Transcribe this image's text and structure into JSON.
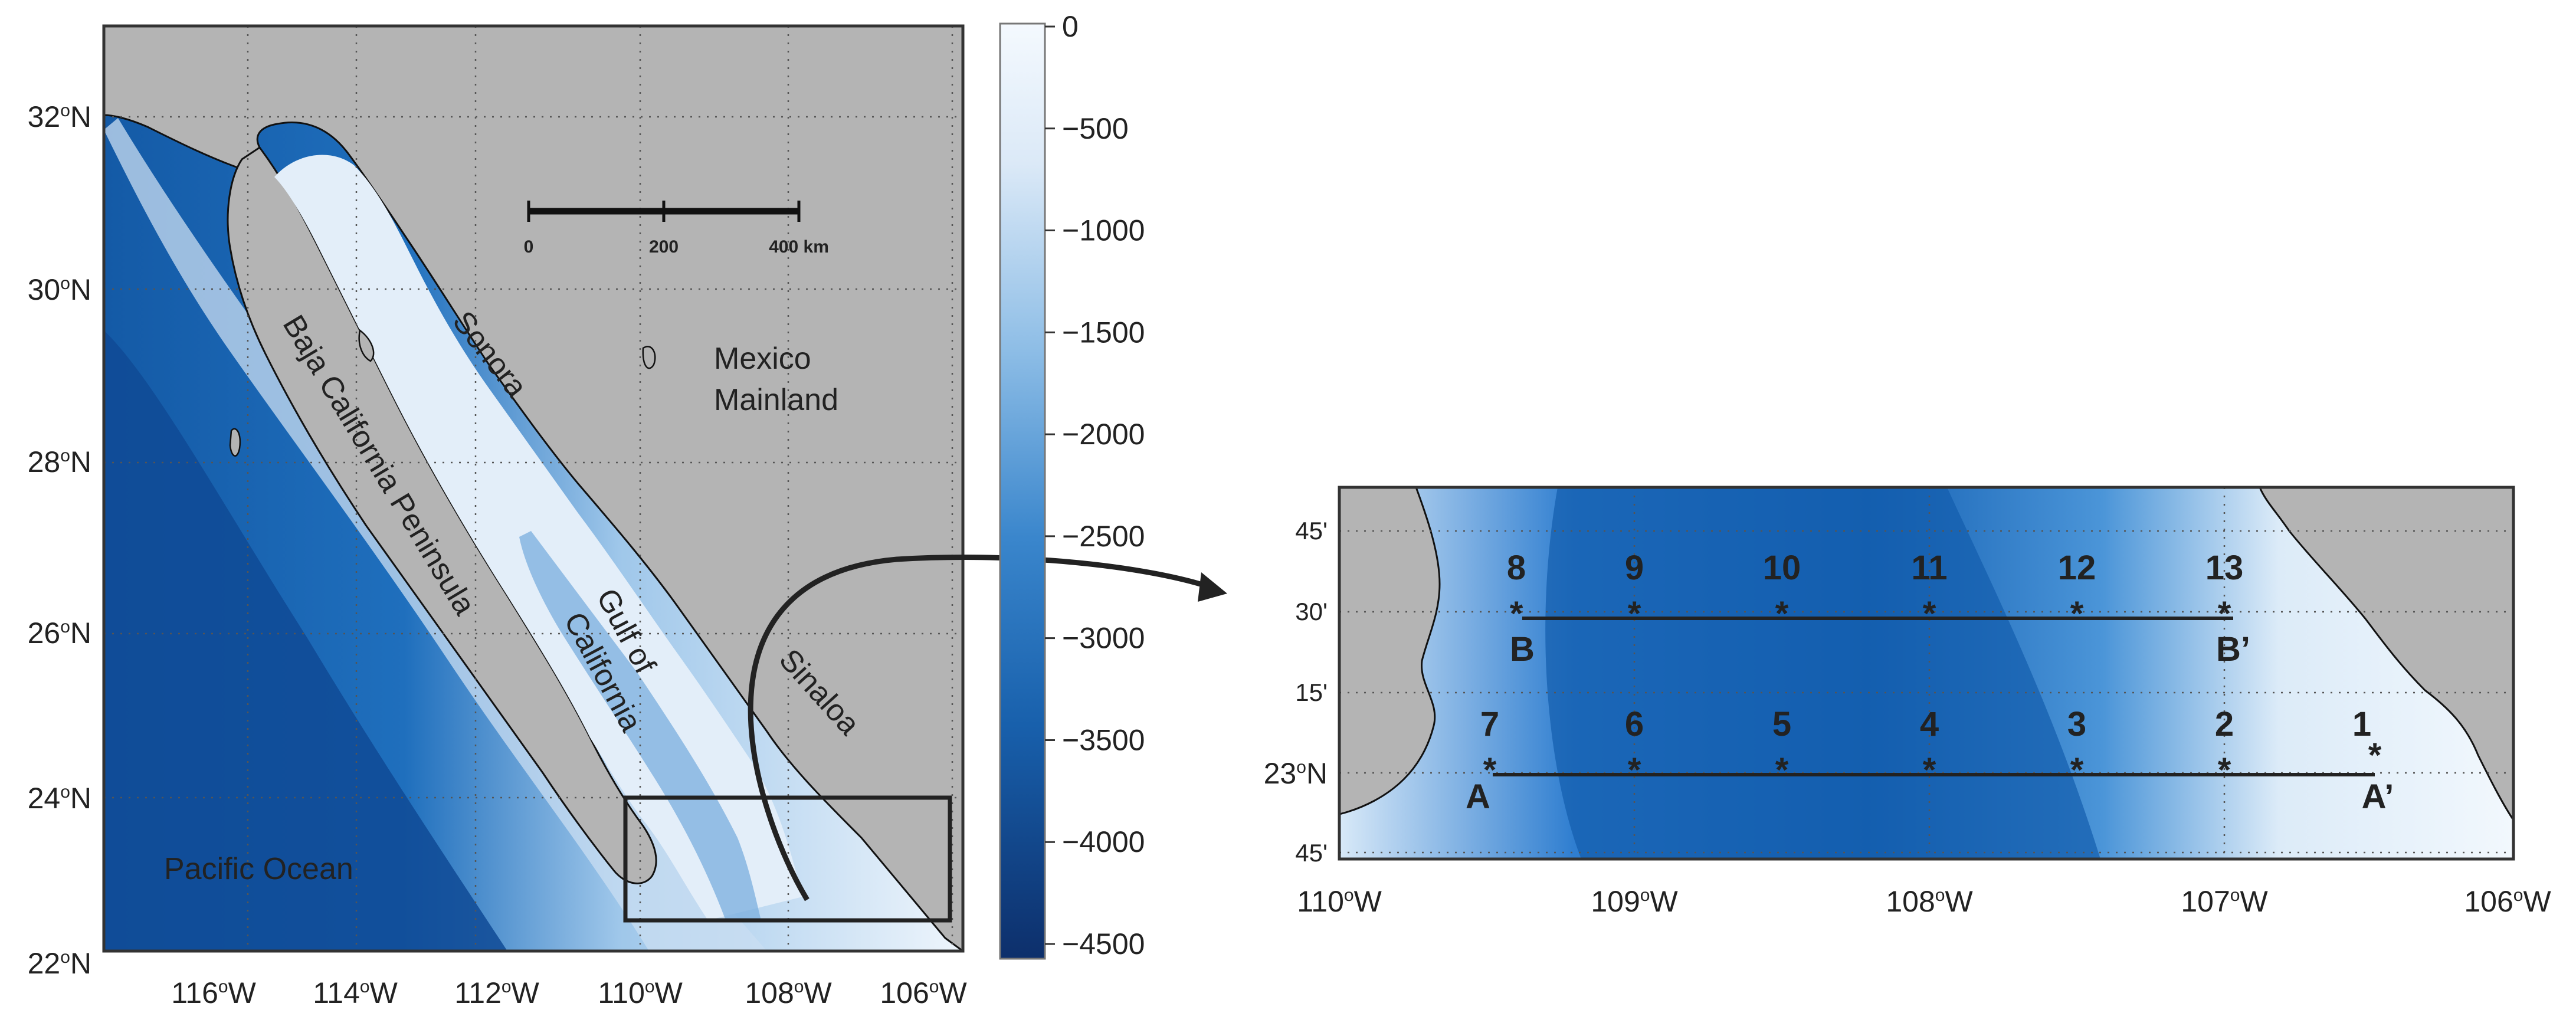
{
  "colors": {
    "land": "#b4b4b4",
    "ocean_shallow": "#f3f8fd",
    "ocean_deep": "#0c3f85",
    "frame": "#333333"
  },
  "left_map": {
    "lat_labels": [
      {
        "deg": "32",
        "sup": "o",
        "hemi": "N"
      },
      {
        "deg": "30",
        "sup": "o",
        "hemi": "N"
      },
      {
        "deg": "28",
        "sup": "o",
        "hemi": "N"
      },
      {
        "deg": "26",
        "sup": "o",
        "hemi": "N"
      },
      {
        "deg": "24",
        "sup": "o",
        "hemi": "N"
      },
      {
        "deg": "22",
        "sup": "o",
        "hemi": "N"
      }
    ],
    "lon_labels": [
      {
        "deg": "116",
        "sup": "o",
        "hemi": "W"
      },
      {
        "deg": "114",
        "sup": "o",
        "hemi": "W"
      },
      {
        "deg": "112",
        "sup": "o",
        "hemi": "W"
      },
      {
        "deg": "110",
        "sup": "o",
        "hemi": "W"
      },
      {
        "deg": "108",
        "sup": "o",
        "hemi": "W"
      },
      {
        "deg": "106",
        "sup": "o",
        "hemi": "W"
      }
    ],
    "places": {
      "sonora": "Sonora",
      "mexico": "Mexico",
      "mainland": "Mainland",
      "baja": "Baja California Peninsula",
      "gulf": "Gulf of",
      "california": "California",
      "sinaloa": "Sinaloa",
      "pacific": "Pacific Ocean"
    },
    "scale_bar": {
      "t0": "0",
      "t1": "200",
      "t2": "400 km"
    }
  },
  "colorbar": {
    "ticks": [
      "0",
      "−500",
      "−1000",
      "−1500",
      "−2000",
      "−2500",
      "−3000",
      "−3500",
      "−4000",
      "−4500"
    ]
  },
  "inset": {
    "lat_labels": [
      "45'",
      "30'",
      "15'",
      "23°N",
      "45'"
    ],
    "lat_23": {
      "deg": "23",
      "sup": "o",
      "hemi": "N"
    },
    "lon_labels": [
      {
        "deg": "110",
        "sup": "o",
        "hemi": "W"
      },
      {
        "deg": "109",
        "sup": "o",
        "hemi": "W"
      },
      {
        "deg": "108",
        "sup": "o",
        "hemi": "W"
      },
      {
        "deg": "107",
        "sup": "o",
        "hemi": "W"
      },
      {
        "deg": "106",
        "sup": "o",
        "hemi": "W"
      }
    ],
    "stations_top": [
      "8",
      "9",
      "10",
      "11",
      "12",
      "13"
    ],
    "stations_bottom": [
      "7",
      "6",
      "5",
      "4",
      "3",
      "2",
      "1"
    ],
    "star": "*",
    "transects": {
      "B": "B",
      "B_prime": "B’",
      "A": "A",
      "A_prime": "A’"
    }
  }
}
